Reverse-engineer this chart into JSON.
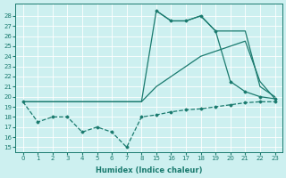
{
  "bg_color": "#cdf0f0",
  "grid_color": "#ffffff",
  "line_color": "#1a7a6e",
  "xlabel": "Humidex (Indice chaleur)",
  "ylim": [
    14.5,
    29.2
  ],
  "yticks": [
    15,
    16,
    17,
    18,
    19,
    20,
    21,
    22,
    23,
    24,
    25,
    26,
    27,
    28
  ],
  "xtick_labels": [
    "0",
    "1",
    "2",
    "3",
    "4",
    "5",
    "6",
    "7",
    "8",
    "15",
    "16",
    "17",
    "18",
    "19",
    "20",
    "21",
    "22",
    "23"
  ],
  "xtick_pos": [
    0,
    1,
    2,
    3,
    4,
    5,
    6,
    7,
    8,
    9,
    10,
    11,
    12,
    13,
    14,
    15,
    16,
    17
  ],
  "xlim": [
    -0.5,
    17.5
  ],
  "line_zigzag_x": [
    0,
    1,
    2,
    3,
    4,
    5,
    6,
    7,
    8,
    9,
    10,
    11,
    12,
    13,
    14,
    15,
    16,
    17
  ],
  "line_zigzag_y": [
    19.5,
    17.5,
    18.0,
    18.0,
    16.5,
    17.0,
    16.5,
    15.0,
    18.0,
    18.2,
    18.5,
    18.7,
    18.8,
    19.0,
    19.2,
    19.4,
    19.5,
    19.5
  ],
  "line_mid_x": [
    0,
    8,
    9,
    10,
    11,
    12,
    13,
    14,
    15,
    16,
    17
  ],
  "line_mid_y": [
    19.5,
    19.5,
    21.0,
    22.0,
    23.0,
    24.0,
    24.5,
    25.0,
    25.5,
    21.5,
    19.8
  ],
  "line_upper_x": [
    0,
    8,
    9,
    10,
    11,
    12,
    13,
    14,
    15,
    16,
    17
  ],
  "line_upper_y": [
    19.5,
    19.5,
    28.5,
    27.5,
    27.5,
    28.0,
    26.5,
    26.5,
    26.5,
    21.0,
    20.0
  ],
  "line_top_x": [
    9,
    10,
    11,
    12,
    13,
    14,
    15,
    16,
    17
  ],
  "line_top_y": [
    28.5,
    27.5,
    27.5,
    28.0,
    26.5,
    21.5,
    20.5,
    20.0,
    19.8
  ]
}
